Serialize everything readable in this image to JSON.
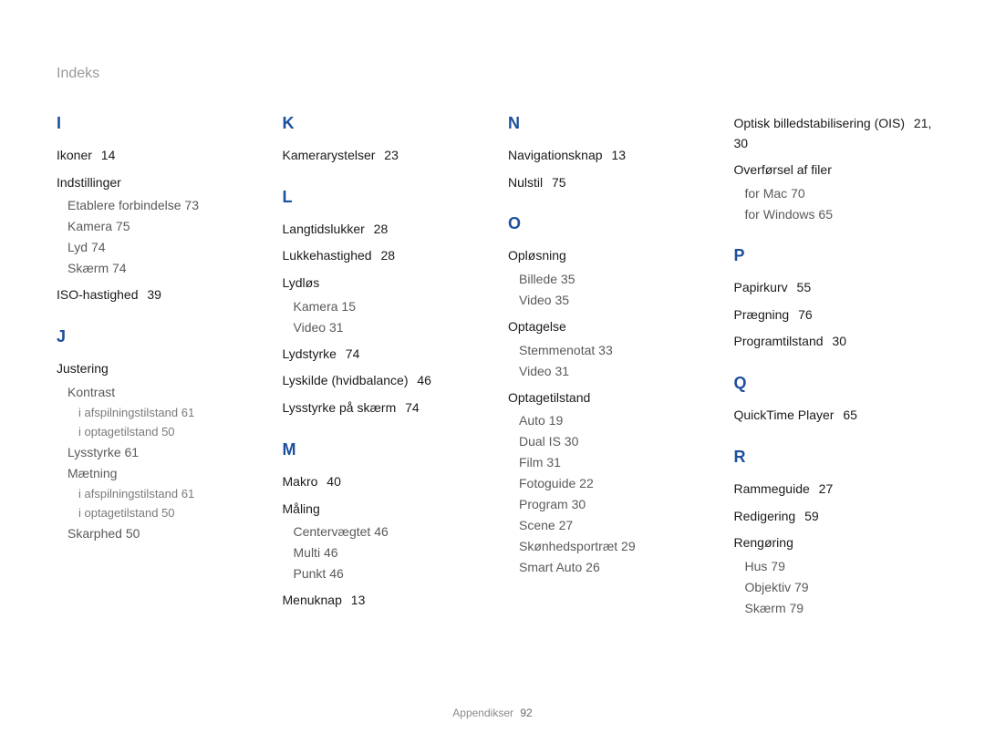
{
  "page_title": "Indeks",
  "footer": {
    "label": "Appendikser",
    "page": "92"
  },
  "colors": {
    "heading": "#1c4f9c",
    "entry": "#1a1a1a",
    "sub": "#5a5a5a",
    "subsub": "#7a7a7a",
    "title": "#9a9a9a",
    "background": "#ffffff"
  },
  "fontsizes": {
    "title": 16,
    "heading": 18,
    "entry": 14,
    "sub": 14,
    "subsub": 13,
    "footer": 12
  },
  "columns": [
    {
      "letters": [
        {
          "letter": "I",
          "items": [
            {
              "label": "Ikoner",
              "page": "14"
            },
            {
              "label": "Indstillinger",
              "subs": [
                {
                  "label": "Etablere forbindelse",
                  "page": "73"
                },
                {
                  "label": "Kamera",
                  "page": "75"
                },
                {
                  "label": "Lyd",
                  "page": "74"
                },
                {
                  "label": "Skærm",
                  "page": "74"
                }
              ]
            },
            {
              "label": "ISO-hastighed",
              "page": "39"
            }
          ]
        },
        {
          "letter": "J",
          "items": [
            {
              "label": "Justering",
              "subs": [
                {
                  "label": "Kontrast",
                  "subs": [
                    {
                      "label": "i afspilningstilstand",
                      "page": "61"
                    },
                    {
                      "label": "i optagetilstand",
                      "page": "50"
                    }
                  ]
                },
                {
                  "label": "Lysstyrke",
                  "page": "61"
                },
                {
                  "label": "Mætning",
                  "subs": [
                    {
                      "label": "i afspilningstilstand",
                      "page": "61"
                    },
                    {
                      "label": "i optagetilstand",
                      "page": "50"
                    }
                  ]
                },
                {
                  "label": "Skarphed",
                  "page": "50"
                }
              ]
            }
          ]
        }
      ]
    },
    {
      "letters": [
        {
          "letter": "K",
          "items": [
            {
              "label": "Kamerarystelser",
              "page": "23"
            }
          ]
        },
        {
          "letter": "L",
          "items": [
            {
              "label": "Langtidslukker",
              "page": "28"
            },
            {
              "label": "Lukkehastighed",
              "page": "28"
            },
            {
              "label": "Lydløs",
              "subs": [
                {
                  "label": "Kamera",
                  "page": "15"
                },
                {
                  "label": "Video",
                  "page": "31"
                }
              ]
            },
            {
              "label": "Lydstyrke",
              "page": "74"
            },
            {
              "label": "Lyskilde (hvidbalance)",
              "page": "46"
            },
            {
              "label": "Lysstyrke på skærm",
              "page": "74"
            }
          ]
        },
        {
          "letter": "M",
          "items": [
            {
              "label": "Makro",
              "page": "40"
            },
            {
              "label": "Måling",
              "subs": [
                {
                  "label": "Centervægtet",
                  "page": "46"
                },
                {
                  "label": "Multi",
                  "page": "46"
                },
                {
                  "label": "Punkt",
                  "page": "46"
                }
              ]
            },
            {
              "label": "Menuknap",
              "page": "13"
            }
          ]
        }
      ]
    },
    {
      "letters": [
        {
          "letter": "N",
          "items": [
            {
              "label": "Navigationsknap",
              "page": "13"
            },
            {
              "label": "Nulstil",
              "page": "75"
            }
          ]
        },
        {
          "letter": "O",
          "items": [
            {
              "label": "Opløsning",
              "subs": [
                {
                  "label": "Billede",
                  "page": "35"
                },
                {
                  "label": "Video",
                  "page": "35"
                }
              ]
            },
            {
              "label": "Optagelse",
              "subs": [
                {
                  "label": "Stemmenotat",
                  "page": "33"
                },
                {
                  "label": "Video",
                  "page": "31"
                }
              ]
            },
            {
              "label": "Optagetilstand",
              "subs": [
                {
                  "label": "Auto",
                  "page": "19"
                },
                {
                  "label": "Dual IS",
                  "page": "30"
                },
                {
                  "label": "Film",
                  "page": "31"
                },
                {
                  "label": "Fotoguide",
                  "page": "22"
                },
                {
                  "label": "Program",
                  "page": "30"
                },
                {
                  "label": "Scene",
                  "page": "27"
                },
                {
                  "label": "Skønhedsportræt",
                  "page": "29"
                },
                {
                  "label": "Smart Auto",
                  "page": "26"
                }
              ]
            }
          ]
        }
      ]
    },
    {
      "letters": [
        {
          "letter": "",
          "items": [
            {
              "label": "Optisk billedstabilisering (OIS)",
              "page": "21, 30"
            },
            {
              "label": "Overførsel af filer",
              "subs": [
                {
                  "label": "for Mac",
                  "page": "70"
                },
                {
                  "label": "for Windows",
                  "page": "65"
                }
              ]
            }
          ]
        },
        {
          "letter": "P",
          "items": [
            {
              "label": "Papirkurv",
              "page": "55"
            },
            {
              "label": "Prægning",
              "page": "76"
            },
            {
              "label": "Programtilstand",
              "page": "30"
            }
          ]
        },
        {
          "letter": "Q",
          "items": [
            {
              "label": "QuickTime Player",
              "page": "65"
            }
          ]
        },
        {
          "letter": "R",
          "items": [
            {
              "label": "Rammeguide",
              "page": "27"
            },
            {
              "label": "Redigering",
              "page": "59"
            },
            {
              "label": "Rengøring",
              "subs": [
                {
                  "label": "Hus",
                  "page": "79"
                },
                {
                  "label": "Objektiv",
                  "page": "79"
                },
                {
                  "label": "Skærm",
                  "page": "79"
                }
              ]
            }
          ]
        }
      ]
    }
  ]
}
